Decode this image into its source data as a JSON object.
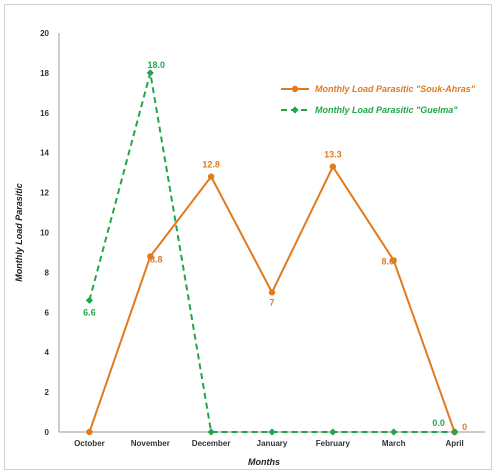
{
  "chart_data": {
    "type": "line",
    "categories": [
      "October",
      "November",
      "December",
      "January",
      "February",
      "March",
      "April"
    ],
    "xlabel": "Months",
    "ylabel": "Monthly Load Parasitic",
    "ylim": [
      0,
      20
    ],
    "yticks": [
      "0",
      "2",
      "4",
      "6",
      "8",
      "10",
      "12",
      "14",
      "16",
      "18",
      "20"
    ],
    "grid": false,
    "legend_position": "top-right",
    "series": [
      {
        "name": "Monthly Load Parasitic \"Souk-Ahras\"",
        "color": "#e07b1f",
        "style": "solid",
        "marker": "circle",
        "values": [
          0,
          8.8,
          12.8,
          7,
          13.3,
          8.6,
          0
        ],
        "labels": [
          "",
          "8.8",
          "12.8",
          "7",
          "13.3",
          "8.6",
          "0"
        ]
      },
      {
        "name": "Monthly Load Parasitic \"Guelma\"",
        "color": "#22a64a",
        "style": "dashed",
        "marker": "diamond",
        "values": [
          6.6,
          18.0,
          0,
          0,
          0,
          0,
          0
        ],
        "labels": [
          "6.6",
          "18.0",
          "",
          "",
          "",
          "",
          "0.0"
        ]
      }
    ]
  }
}
